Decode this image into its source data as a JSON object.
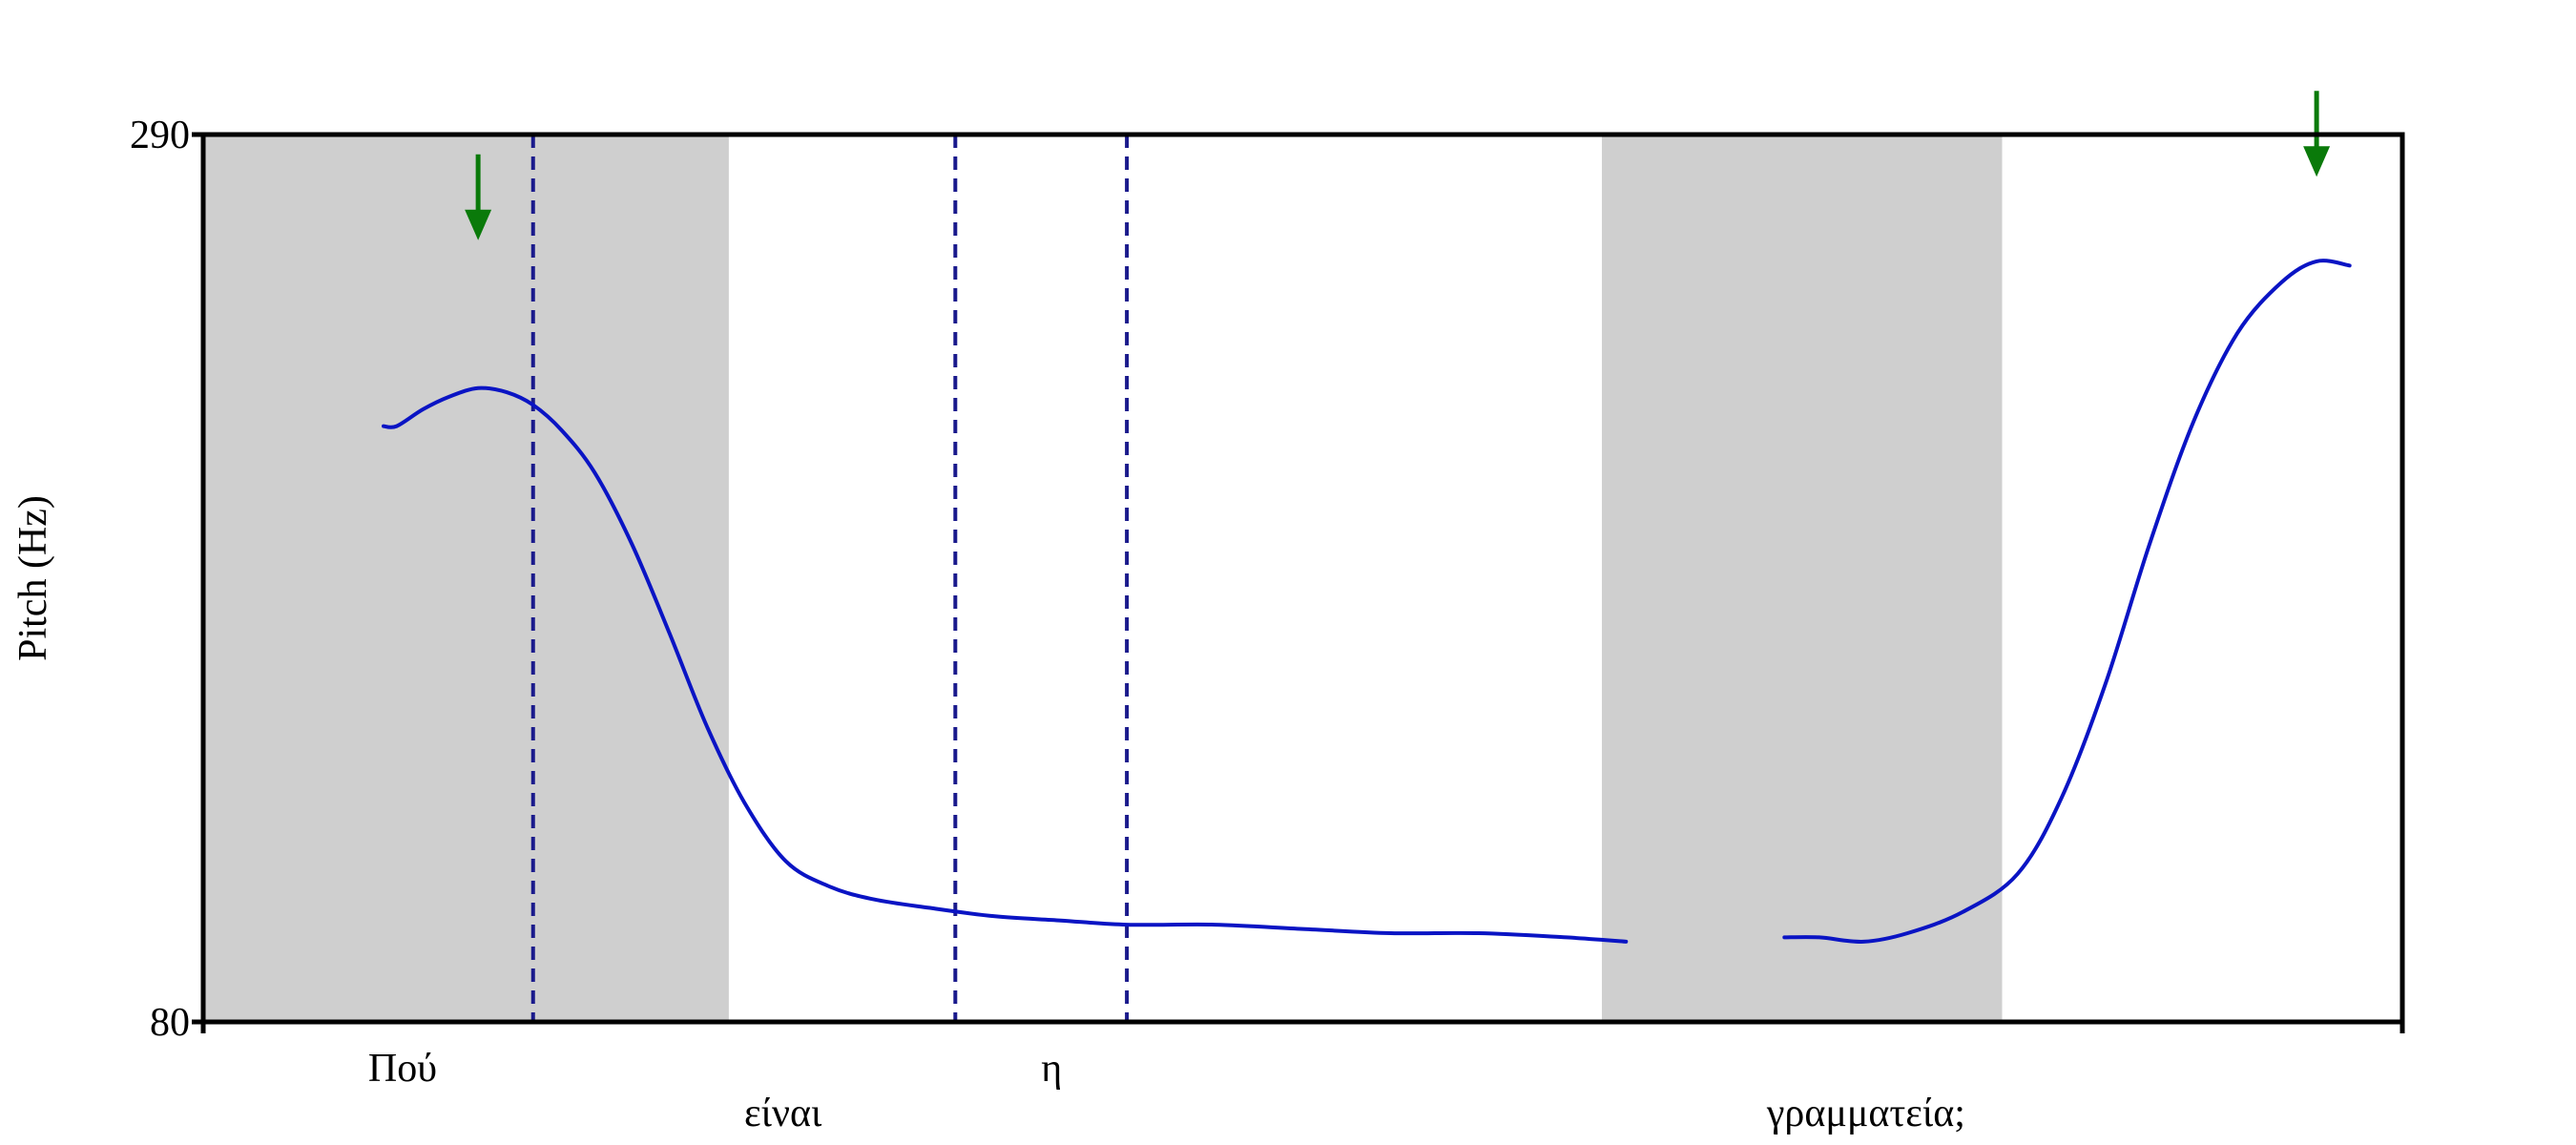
{
  "chart_data": {
    "type": "line",
    "title": "",
    "xlabel": "",
    "ylabel": "Pitch (Hz)",
    "ylim": [
      80,
      290
    ],
    "y_ticks": [
      {
        "value": 290,
        "label": "290"
      },
      {
        "value": 80,
        "label": "80"
      }
    ],
    "xlim": [
      0,
      1
    ],
    "grid": false,
    "legend": "none",
    "colors": {
      "pitch_line": "#0a14c4",
      "boundary_line": "#1a1a8c",
      "shaded_region": "#cfcfcf",
      "arrow": "#0a7a0a",
      "axis": "#000000"
    },
    "shaded_regions": [
      {
        "x_start": 0.0,
        "x_end": 0.239
      },
      {
        "x_start": 0.636,
        "x_end": 0.818
      }
    ],
    "boundaries": [
      0.15,
      0.342,
      0.42
    ],
    "words": [
      {
        "text": "Πού",
        "x": 0.075,
        "row": 1
      },
      {
        "text": "είναι",
        "x": 0.246,
        "row": 2
      },
      {
        "text": "η",
        "x": 0.381,
        "row": 1
      },
      {
        "text": "γραμματεία;",
        "x": 0.711,
        "row": 2
      }
    ],
    "arrows": [
      {
        "x": 0.125,
        "y": 265
      },
      {
        "x": 0.961,
        "y": 280
      }
    ],
    "series": [
      {
        "values": [
          {
            "x": 0.082,
            "y": 221
          },
          {
            "x": 0.088,
            "y": 221
          },
          {
            "x": 0.1,
            "y": 225
          },
          {
            "x": 0.112,
            "y": 228
          },
          {
            "x": 0.125,
            "y": 230
          },
          {
            "x": 0.138,
            "y": 229
          },
          {
            "x": 0.15,
            "y": 226
          },
          {
            "x": 0.163,
            "y": 220
          },
          {
            "x": 0.178,
            "y": 210
          },
          {
            "x": 0.195,
            "y": 193
          },
          {
            "x": 0.212,
            "y": 172
          },
          {
            "x": 0.229,
            "y": 150
          },
          {
            "x": 0.246,
            "y": 132
          },
          {
            "x": 0.265,
            "y": 118
          },
          {
            "x": 0.285,
            "y": 112
          },
          {
            "x": 0.305,
            "y": 109
          },
          {
            "x": 0.33,
            "y": 107
          },
          {
            "x": 0.36,
            "y": 105
          },
          {
            "x": 0.39,
            "y": 104
          },
          {
            "x": 0.42,
            "y": 103
          },
          {
            "x": 0.46,
            "y": 103
          },
          {
            "x": 0.5,
            "y": 102
          },
          {
            "x": 0.54,
            "y": 101
          },
          {
            "x": 0.58,
            "y": 101
          },
          {
            "x": 0.62,
            "y": 100
          },
          {
            "x": 0.647,
            "y": 99
          },
          {
            "x": null,
            "y": null
          },
          {
            "x": 0.719,
            "y": 100
          },
          {
            "x": 0.735,
            "y": 100
          },
          {
            "x": 0.755,
            "y": 99
          },
          {
            "x": 0.775,
            "y": 101
          },
          {
            "x": 0.8,
            "y": 106
          },
          {
            "x": 0.825,
            "y": 115
          },
          {
            "x": 0.845,
            "y": 133
          },
          {
            "x": 0.865,
            "y": 160
          },
          {
            "x": 0.885,
            "y": 193
          },
          {
            "x": 0.905,
            "y": 222
          },
          {
            "x": 0.925,
            "y": 243
          },
          {
            "x": 0.945,
            "y": 255
          },
          {
            "x": 0.961,
            "y": 260
          },
          {
            "x": 0.976,
            "y": 259
          }
        ]
      }
    ]
  }
}
